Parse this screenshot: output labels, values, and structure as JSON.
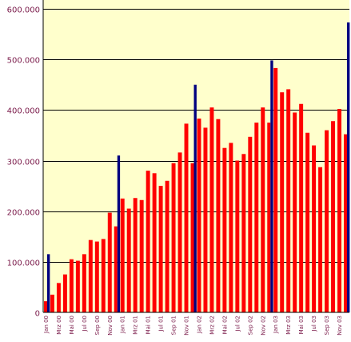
{
  "chart_data": {
    "type": "bar",
    "title": "",
    "xlabel": "",
    "ylabel": "",
    "ylim": [
      0,
      600000
    ],
    "grid": true,
    "legend": "none",
    "y_ticks": [
      "0",
      "100.000",
      "200.000",
      "300.000",
      "400.000",
      "500.000",
      "600.000"
    ],
    "y_tick_values": [
      0,
      100000,
      200000,
      300000,
      400000,
      500000,
      600000
    ],
    "x_tick_labels": [
      "Jan 00",
      "Mrz 00",
      "Mai 00",
      "Jul 00",
      "Sep 00",
      "Nov 00",
      "Jan 01",
      "Mrz 01",
      "Mai 01",
      "Jul 01",
      "Sep 01",
      "Nov 01",
      "Jan 02",
      "Mrz 02",
      "Mai 02",
      "Jul 02",
      "Sep 02",
      "Nov 02",
      "Jan 03",
      "Mrz 03",
      "Mai 03",
      "Jul 03",
      "Sep 03",
      "Nov 03"
    ],
    "colors": {
      "plot_background": "#ffffcc",
      "monthly_bar": "#ff0000",
      "highlight_bar": "#000080",
      "gridline": "#000000",
      "tick_text": "#7a1a4a"
    },
    "series": [
      {
        "color": "#ff0000",
        "values": [
          22000,
          35000,
          58000,
          75000,
          105000,
          102000,
          115000,
          143000,
          140000,
          145000,
          197000,
          170000,
          225000,
          205000,
          226000,
          222000,
          280000,
          275000,
          250000,
          260000,
          295000,
          316000,
          373000,
          295000,
          383000,
          365000,
          405000,
          382000,
          325000,
          335000,
          300000,
          313000,
          347000,
          375000,
          405000,
          375000,
          483000,
          435000,
          441000,
          395000,
          412000,
          355000,
          330000,
          287000,
          360000,
          378000,
          402000,
          352000
        ]
      },
      {
        "color": "#000080",
        "values": [
          115000,
          null,
          null,
          null,
          null,
          null,
          null,
          null,
          null,
          null,
          null,
          310000,
          null,
          null,
          null,
          null,
          null,
          null,
          null,
          null,
          null,
          null,
          null,
          450000,
          null,
          null,
          null,
          null,
          null,
          null,
          null,
          null,
          null,
          null,
          null,
          498000,
          null,
          null,
          null,
          null,
          null,
          null,
          null,
          null,
          null,
          null,
          null,
          573000
        ]
      }
    ]
  }
}
